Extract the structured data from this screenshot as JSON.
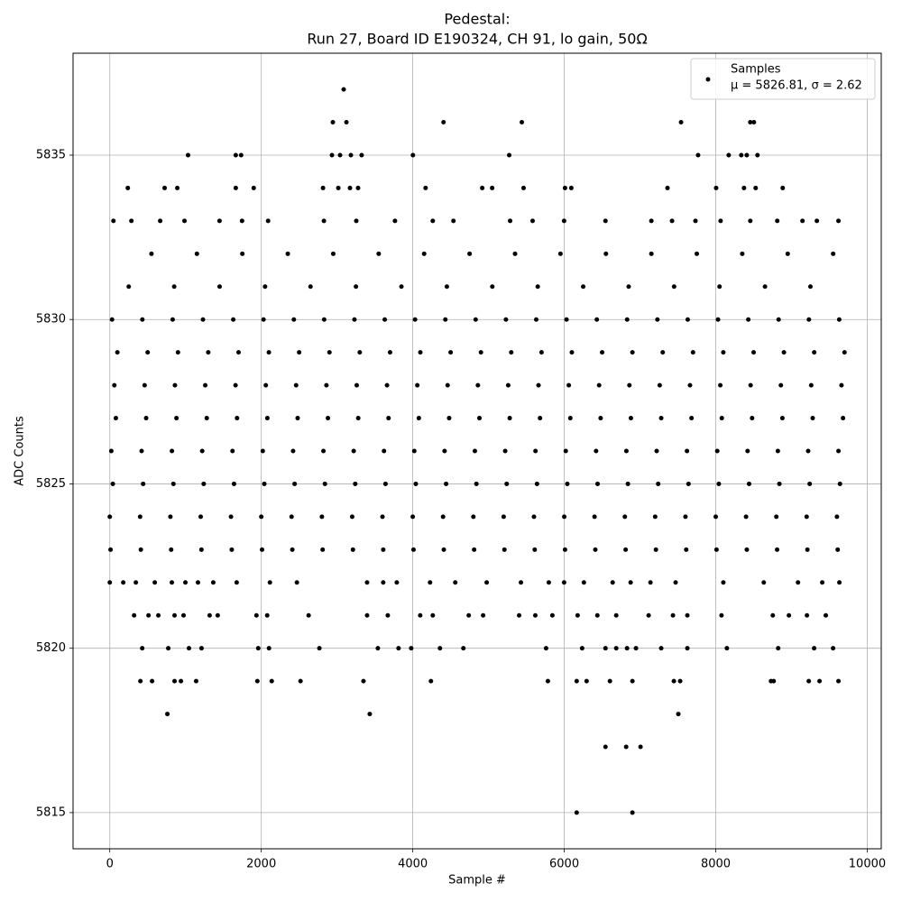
{
  "chart_data": {
    "type": "scatter",
    "title": "Pedestal:",
    "subtitle": "Run 27, Board ID E190324, CH 91, lo gain, 50Ω",
    "x_label": "Sample #",
    "y_label": "ADC Counts",
    "xlim": [
      -485,
      10185
    ],
    "ylim": [
      5813.9,
      5838.1
    ],
    "xticks": [
      0,
      2000,
      4000,
      6000,
      8000,
      10000
    ],
    "yticks": [
      5815,
      5820,
      5825,
      5830,
      5835
    ],
    "grid": true,
    "legend": "upper right",
    "annotation": "μ = 5826.81, σ = 2.62",
    "x": [
      10,
      410,
      810,
      1210,
      1610,
      2010,
      2410,
      2810,
      3210,
      3610,
      4010,
      4410,
      4810,
      5210,
      5610,
      6010,
      6410,
      6810,
      7210,
      7610,
      8010,
      8410,
      8810,
      9210,
      9610,
      0,
      400,
      800,
      1200,
      1600,
      2000,
      2400,
      2800,
      3200,
      3600,
      4000,
      4400,
      4800,
      5200,
      5600,
      6000,
      6400,
      6800,
      7200,
      7600,
      8000,
      8400,
      8800,
      9200,
      9600,
      40,
      440,
      840,
      1240,
      1640,
      2040,
      2440,
      2840,
      3240,
      3640,
      4040,
      4440,
      4840,
      5240,
      5640,
      6040,
      6440,
      6840,
      7240,
      7640,
      8040,
      8440,
      8840,
      9240,
      9640,
      20,
      420,
      820,
      1220,
      1620,
      2020,
      2420,
      2820,
      3220,
      3620,
      4020,
      4420,
      4820,
      5220,
      5620,
      6020,
      6420,
      6820,
      7220,
      7620,
      8020,
      8420,
      8820,
      9220,
      9620,
      80,
      480,
      880,
      1280,
      1680,
      2080,
      2480,
      2880,
      3280,
      3680,
      4080,
      4480,
      4880,
      5280,
      5680,
      6080,
      6480,
      6880,
      7280,
      7680,
      8080,
      8480,
      8880,
      9280,
      9680,
      60,
      460,
      860,
      1260,
      1660,
      2060,
      2460,
      2860,
      3260,
      3660,
      4060,
      4460,
      4860,
      5260,
      5660,
      6060,
      6460,
      6860,
      7260,
      7660,
      8060,
      8460,
      8860,
      9260,
      9660,
      100,
      500,
      900,
      1300,
      1700,
      2100,
      2500,
      2900,
      3300,
      3700,
      4100,
      4500,
      4900,
      5300,
      5700,
      6100,
      6500,
      6900,
      7300,
      7700,
      8100,
      8500,
      8900,
      9300,
      9700,
      30,
      430,
      830,
      1230,
      1630,
      2030,
      2430,
      2830,
      3230,
      3630,
      4030,
      4430,
      4830,
      5230,
      5630,
      6030,
      6430,
      6830,
      7230,
      7630,
      8030,
      8430,
      8830,
      9230,
      9630,
      250,
      850,
      1450,
      2050,
      2650,
      3250,
      3850,
      4450,
      5050,
      5650,
      6250,
      6850,
      7450,
      8050,
      8650,
      9250,
      550,
      1150,
      1750,
      2350,
      2950,
      3550,
      4150,
      4750,
      5350,
      5950,
      6550,
      7150,
      7750,
      8350,
      8950,
      9550,
      3088,
      2945,
      3124,
      4406,
      5440,
      7542,
      8456,
      8504,
      1033,
      1663,
      1734,
      2933,
      3040,
      3183,
      3325,
      4002,
      5273,
      7767,
      8171,
      8337,
      8409,
      8551,
      238,
      724,
      891,
      1663,
      1900,
      2815,
      3017,
      3171,
      3278,
      4169,
      4917,
      5048,
      5463,
      6010,
      6093,
      7363,
      8005,
      8373,
      8527,
      8884,
      48,
      285,
      665,
      986,
      1449,
      1746,
      2090,
      2827,
      3254,
      3765,
      4264,
      4537,
      5285,
      5582,
      5998,
      6544,
      7150,
      7423,
      7732,
      8064,
      8456,
      8812,
      9145,
      9335,
      9620,
      0,
      178,
      344,
      594,
      819,
      998,
      1164,
      1366,
      1675,
      2114,
      2470,
      3397,
      3610,
      3789,
      4228,
      4561,
      4976,
      5428,
      5796,
      5998,
      6259,
      6639,
      6876,
      7138,
      7470,
      8100,
      8634,
      9086,
      9406,
      9632,
      321,
      511,
      641,
      855,
      974,
      1318,
      1425,
      1936,
      2078,
      2625,
      3397,
      3670,
      4098,
      4264,
      4739,
      4929,
      5404,
      5618,
      5843,
      6176,
      6437,
      6686,
      7114,
      7435,
      7625,
      8076,
      8753,
      8966,
      9204,
      9453,
      428,
      772,
      1045,
      1211,
      1960,
      2102,
      2767,
      3539,
      3812,
      3979,
      4359,
      4668,
      5760,
      6236,
      6544,
      6686,
      6829,
      6947,
      7280,
      7625,
      8147,
      8824,
      9299,
      9549,
      404,
      558,
      855,
      939,
      1140,
      1948,
      2138,
      2518,
      3349,
      4240,
      5784,
      6164,
      6295,
      6603,
      6900,
      7447,
      7530,
      8729,
      8765,
      9228,
      9370,
      9620,
      760,
      3432,
      7506,
      6544,
      6817,
      7007,
      6164,
      6900
    ],
    "series": [
      {
        "name": "Samples",
        "color": "#000000",
        "values": [
          5823,
          5823,
          5823,
          5823,
          5823,
          5823,
          5823,
          5823,
          5823,
          5823,
          5823,
          5823,
          5823,
          5823,
          5823,
          5823,
          5823,
          5823,
          5823,
          5823,
          5823,
          5823,
          5823,
          5823,
          5823,
          5824,
          5824,
          5824,
          5824,
          5824,
          5824,
          5824,
          5824,
          5824,
          5824,
          5824,
          5824,
          5824,
          5824,
          5824,
          5824,
          5824,
          5824,
          5824,
          5824,
          5824,
          5824,
          5824,
          5824,
          5824,
          5825,
          5825,
          5825,
          5825,
          5825,
          5825,
          5825,
          5825,
          5825,
          5825,
          5825,
          5825,
          5825,
          5825,
          5825,
          5825,
          5825,
          5825,
          5825,
          5825,
          5825,
          5825,
          5825,
          5825,
          5825,
          5826,
          5826,
          5826,
          5826,
          5826,
          5826,
          5826,
          5826,
          5826,
          5826,
          5826,
          5826,
          5826,
          5826,
          5826,
          5826,
          5826,
          5826,
          5826,
          5826,
          5826,
          5826,
          5826,
          5826,
          5826,
          5827,
          5827,
          5827,
          5827,
          5827,
          5827,
          5827,
          5827,
          5827,
          5827,
          5827,
          5827,
          5827,
          5827,
          5827,
          5827,
          5827,
          5827,
          5827,
          5827,
          5827,
          5827,
          5827,
          5827,
          5827,
          5828,
          5828,
          5828,
          5828,
          5828,
          5828,
          5828,
          5828,
          5828,
          5828,
          5828,
          5828,
          5828,
          5828,
          5828,
          5828,
          5828,
          5828,
          5828,
          5828,
          5828,
          5828,
          5828,
          5828,
          5828,
          5829,
          5829,
          5829,
          5829,
          5829,
          5829,
          5829,
          5829,
          5829,
          5829,
          5829,
          5829,
          5829,
          5829,
          5829,
          5829,
          5829,
          5829,
          5829,
          5829,
          5829,
          5829,
          5829,
          5829,
          5829,
          5830,
          5830,
          5830,
          5830,
          5830,
          5830,
          5830,
          5830,
          5830,
          5830,
          5830,
          5830,
          5830,
          5830,
          5830,
          5830,
          5830,
          5830,
          5830,
          5830,
          5830,
          5830,
          5830,
          5830,
          5830,
          5831,
          5831,
          5831,
          5831,
          5831,
          5831,
          5831,
          5831,
          5831,
          5831,
          5831,
          5831,
          5831,
          5831,
          5831,
          5831,
          5832,
          5832,
          5832,
          5832,
          5832,
          5832,
          5832,
          5832,
          5832,
          5832,
          5832,
          5832,
          5832,
          5832,
          5832,
          5832,
          5837,
          5836,
          5836,
          5836,
          5836,
          5836,
          5836,
          5836,
          5835,
          5835,
          5835,
          5835,
          5835,
          5835,
          5835,
          5835,
          5835,
          5835,
          5835,
          5835,
          5835,
          5835,
          5834,
          5834,
          5834,
          5834,
          5834,
          5834,
          5834,
          5834,
          5834,
          5834,
          5834,
          5834,
          5834,
          5834,
          5834,
          5834,
          5834,
          5834,
          5834,
          5834,
          5833,
          5833,
          5833,
          5833,
          5833,
          5833,
          5833,
          5833,
          5833,
          5833,
          5833,
          5833,
          5833,
          5833,
          5833,
          5833,
          5833,
          5833,
          5833,
          5833,
          5833,
          5833,
          5833,
          5833,
          5833,
          5822,
          5822,
          5822,
          5822,
          5822,
          5822,
          5822,
          5822,
          5822,
          5822,
          5822,
          5822,
          5822,
          5822,
          5822,
          5822,
          5822,
          5822,
          5822,
          5822,
          5822,
          5822,
          5822,
          5822,
          5822,
          5822,
          5822,
          5822,
          5822,
          5822,
          5821,
          5821,
          5821,
          5821,
          5821,
          5821,
          5821,
          5821,
          5821,
          5821,
          5821,
          5821,
          5821,
          5821,
          5821,
          5821,
          5821,
          5821,
          5821,
          5821,
          5821,
          5821,
          5821,
          5821,
          5821,
          5821,
          5821,
          5821,
          5821,
          5821,
          5820,
          5820,
          5820,
          5820,
          5820,
          5820,
          5820,
          5820,
          5820,
          5820,
          5820,
          5820,
          5820,
          5820,
          5820,
          5820,
          5820,
          5820,
          5820,
          5820,
          5820,
          5820,
          5820,
          5820,
          5819,
          5819,
          5819,
          5819,
          5819,
          5819,
          5819,
          5819,
          5819,
          5819,
          5819,
          5819,
          5819,
          5819,
          5819,
          5819,
          5819,
          5819,
          5819,
          5819,
          5819,
          5819,
          5818,
          5818,
          5818,
          5817,
          5817,
          5817,
          5815,
          5815
        ]
      }
    ]
  }
}
